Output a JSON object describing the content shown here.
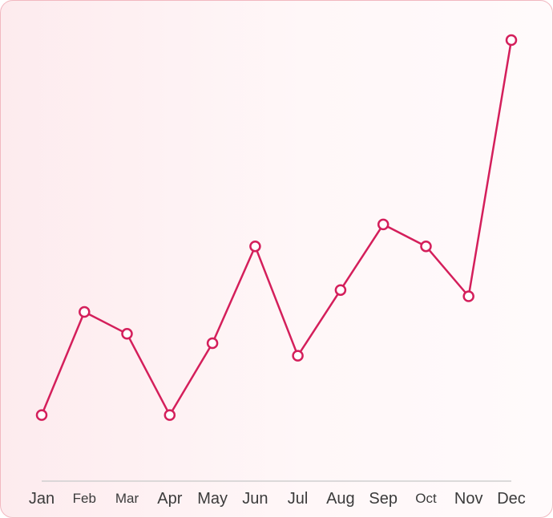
{
  "chart_data": {
    "type": "line",
    "title": "",
    "xlabel": "",
    "ylabel": "",
    "categories": [
      "Jan",
      "Feb",
      "Mar",
      "Apr",
      "May",
      "Jun",
      "Jul",
      "Aug",
      "Sep",
      "Oct",
      "Nov",
      "Dec"
    ],
    "series": [
      {
        "values": [
          25,
          58,
          51,
          25,
          48,
          79,
          44,
          65,
          86,
          79,
          63,
          145
        ]
      }
    ],
    "ylim": [
      0,
      145
    ],
    "grid": false,
    "legend": "none",
    "colors": {
      "line": "#d41f5b",
      "marker_fill": "#ffffff",
      "axis": "#cfcfcf",
      "text": "#3b3b3b"
    }
  }
}
